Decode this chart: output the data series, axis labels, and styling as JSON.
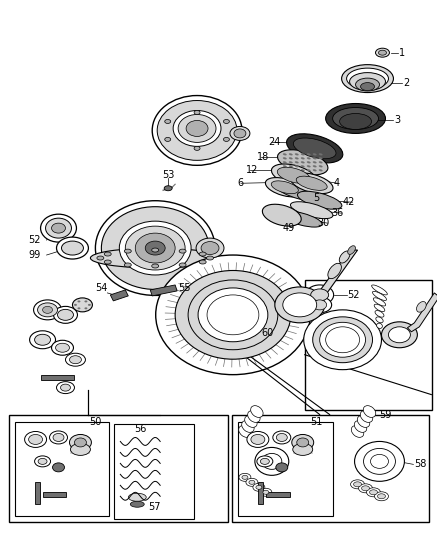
{
  "bg_color": "#ffffff",
  "line_color": "#000000",
  "fig_width": 4.38,
  "fig_height": 5.33,
  "dpi": 100,
  "gray_dark": "#303030",
  "gray_mid": "#707070",
  "gray_light": "#b0b0b0",
  "gray_vlight": "#d8d8d8",
  "gray_ring": "#909090"
}
